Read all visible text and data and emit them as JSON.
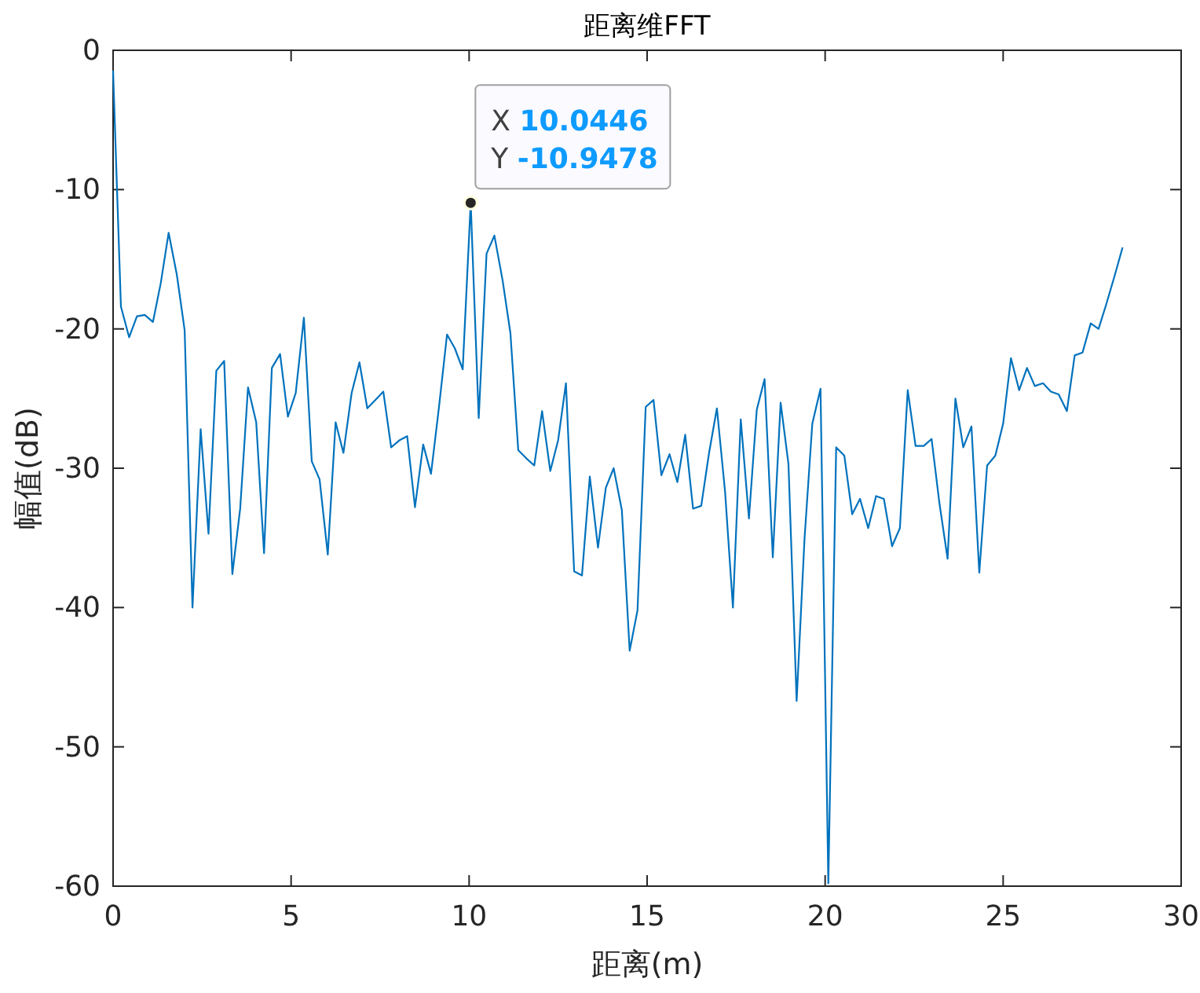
{
  "chart_data": {
    "type": "line",
    "title": "距离维FFT",
    "xlabel": "距离(m)",
    "ylabel": "幅值(dB)",
    "xlim": [
      0,
      30
    ],
    "xticks": [
      0,
      5,
      10,
      15,
      20,
      25,
      30
    ],
    "ylim": [
      -60,
      0
    ],
    "yticks": [
      -60,
      -50,
      -40,
      -30,
      -20,
      -10,
      0
    ],
    "grid": false,
    "marker": "none",
    "line_style": "solid",
    "annotations": [
      {
        "text": "X 10.0446",
        "x": 10.0446,
        "y": -10.9478
      },
      {
        "text": "Y -10.9478",
        "x": 10.0446,
        "y": -10.9478
      }
    ],
    "series": [
      {
        "color": "#0072bd",
        "x": [
          0,
          0.22,
          0.45,
          0.67,
          0.89,
          1.12,
          1.34,
          1.56,
          1.79,
          2.01,
          2.23,
          2.46,
          2.68,
          2.9,
          3.12,
          3.35,
          3.57,
          3.79,
          4.02,
          4.24,
          4.46,
          4.69,
          4.91,
          5.13,
          5.36,
          5.58,
          5.8,
          6.03,
          6.25,
          6.47,
          6.7,
          6.92,
          7.14,
          7.37,
          7.59,
          7.81,
          8.04,
          8.26,
          8.48,
          8.71,
          8.93,
          9.15,
          9.38,
          9.6,
          9.82,
          10.0446,
          10.27,
          10.49,
          10.71,
          10.94,
          11.16,
          11.38,
          11.61,
          11.83,
          12.05,
          12.28,
          12.5,
          12.72,
          12.95,
          13.17,
          13.39,
          13.62,
          13.84,
          14.06,
          14.29,
          14.51,
          14.73,
          14.96,
          15.18,
          15.4,
          15.63,
          15.85,
          16.07,
          16.29,
          16.52,
          16.74,
          16.96,
          17.19,
          17.41,
          17.63,
          17.86,
          18.08,
          18.3,
          18.53,
          18.75,
          18.97,
          19.2,
          19.42,
          19.64,
          19.87,
          20.09,
          20.31,
          20.54,
          20.76,
          20.98,
          21.21,
          21.43,
          21.65,
          21.88,
          22.1,
          22.32,
          22.54,
          22.77,
          22.99,
          23.21,
          23.44,
          23.66,
          23.88,
          24.11,
          24.33,
          24.55,
          24.78,
          25.0,
          25.22,
          25.45,
          25.67,
          25.89,
          26.12,
          26.34,
          26.56,
          26.79,
          27.01,
          27.23,
          27.46,
          27.68,
          27.9,
          28.13,
          28.35
        ],
        "values": [
          -1.5,
          -18.4,
          -20.6,
          -19.1,
          -19.0,
          -19.5,
          -16.7,
          -13.1,
          -16.1,
          -20.1,
          -40.0,
          -27.2,
          -34.7,
          -23.0,
          -22.3,
          -37.6,
          -32.9,
          -24.2,
          -26.7,
          -36.1,
          -22.8,
          -21.8,
          -26.3,
          -24.6,
          -19.2,
          -29.5,
          -30.8,
          -36.2,
          -26.7,
          -28.9,
          -24.6,
          -22.4,
          -25.7,
          -25.1,
          -24.5,
          -28.5,
          -28.0,
          -27.7,
          -32.8,
          -28.3,
          -30.4,
          -25.7,
          -20.4,
          -21.4,
          -22.9,
          -10.9478,
          -26.4,
          -14.6,
          -13.3,
          -16.5,
          -20.3,
          -28.7,
          -29.3,
          -29.8,
          -25.9,
          -30.2,
          -28.0,
          -23.9,
          -37.4,
          -37.7,
          -30.6,
          -35.7,
          -31.4,
          -30.0,
          -33.0,
          -43.1,
          -40.2,
          -25.6,
          -25.1,
          -30.5,
          -29.0,
          -31.0,
          -27.6,
          -32.9,
          -32.7,
          -28.9,
          -25.7,
          -31.7,
          -40.0,
          -26.5,
          -33.6,
          -25.8,
          -23.6,
          -36.4,
          -25.3,
          -29.7,
          -46.7,
          -35.1,
          -26.8,
          -24.3,
          -59.8,
          -28.5,
          -29.1,
          -33.3,
          -32.2,
          -34.3,
          -32.0,
          -32.2,
          -35.6,
          -34.3,
          -24.4,
          -28.4,
          -28.4,
          -27.9,
          -32.5,
          -36.5,
          -25.0,
          -28.5,
          -27.0,
          -37.5,
          -29.8,
          -29.1,
          -26.8,
          -22.1,
          -24.4,
          -22.8,
          -24.1,
          -23.9,
          -24.5,
          -24.7,
          -25.9,
          -21.9,
          -21.7,
          -19.6,
          -20.0,
          -18.2,
          -16.2,
          -14.2
        ]
      }
    ]
  }
}
